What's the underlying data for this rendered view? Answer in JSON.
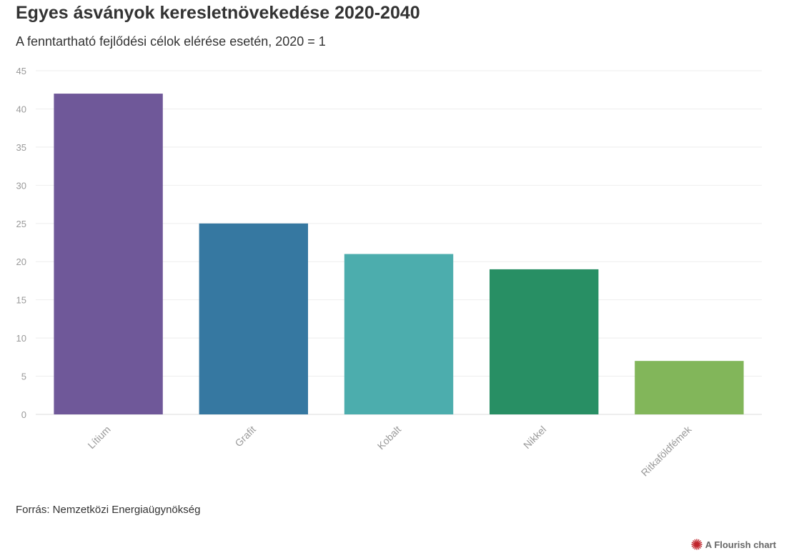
{
  "header": {
    "title": "Egyes ásványok keresletnövekedése 2020-2040",
    "subtitle": "A fenntartható fejlődési célok elérése esetén, 2020 = 1"
  },
  "footer": {
    "source": "Forrás: Nemzetközi Energiaügynökség",
    "credit": "A Flourish chart"
  },
  "chart_data": {
    "type": "bar",
    "categories": [
      "Lítium",
      "Grafit",
      "Kobalt",
      "Nikkel",
      "Ritkaföldfémek"
    ],
    "values": [
      42,
      25,
      21,
      19,
      7
    ],
    "colors": [
      "#6f5899",
      "#3678a1",
      "#4cadad",
      "#288f64",
      "#82b65a"
    ],
    "ylim": [
      0,
      45
    ],
    "yticks": [
      0,
      5,
      10,
      15,
      20,
      25,
      30,
      35,
      40,
      45
    ],
    "grid": true,
    "legend": "none"
  }
}
